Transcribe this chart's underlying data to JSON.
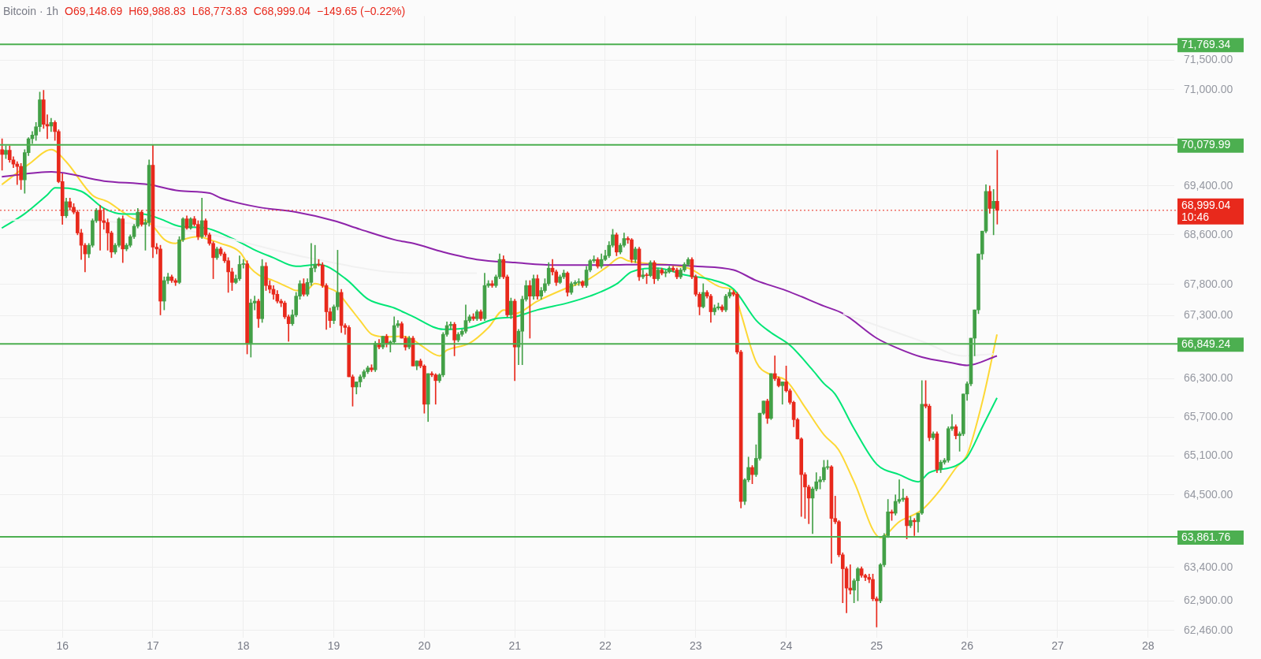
{
  "chart_data": {
    "type": "candlestick",
    "title": "Bitcoin · 1h",
    "annotations": [
      "O69,148.69",
      "H69,988.83",
      "L68,773.83",
      "C68,999.04",
      "−149.65 (−0.22%)"
    ],
    "colors": [
      "#e8291c",
      "#43a047",
      "#e8291c",
      "#e8291c",
      "#e8291c",
      "#e8291c",
      "#43a047",
      "#43a047",
      "#43a047",
      "#43a047",
      "#43a047",
      "#e8291c",
      "#e8291c",
      "#43a047",
      "#e8291c",
      "#e8291c",
      "#e8291c",
      "#43a047",
      "#e8291c",
      "#e8291c",
      "#e8291c",
      "#e8291c",
      "#e8291c",
      "#43a047",
      "#43a047",
      "#43a047",
      "#e8291c",
      "#e8291c",
      "#e8291c",
      "#e8291c",
      "#43a047",
      "#43a047",
      "#e8291c",
      "#43a047",
      "#43a047",
      "#43a047",
      "#43a047",
      "#e8291c",
      "#43a047",
      "#43a047",
      "#e8291c",
      "#e8291c",
      "#e8291c",
      "#43a047",
      "#43a047",
      "#e8291c",
      "#e8291c",
      "#43a047",
      "#43a047",
      "#e8291c",
      "#43a047",
      "#e8291c",
      "#e8291c",
      "#43a047",
      "#e8291c",
      "#e8291c",
      "#e8291c",
      "#43a047",
      "#e8291c",
      "#e8291c",
      "#e8291c",
      "#e8291c",
      "#43a047",
      "#43a047",
      "#43a047",
      "#e8291c",
      "#43a047",
      "#43a047",
      "#e8291c",
      "#43a047",
      "#e8291c",
      "#e8291c",
      "#e8291c",
      "#e8291c",
      "#e8291c",
      "#e8291c",
      "#e8291c",
      "#43a047",
      "#43a047",
      "#43a047",
      "#e8291c",
      "#43a047",
      "#43a047",
      "#43a047",
      "#e8291c",
      "#e8291c",
      "#e8291c",
      "#e8291c",
      "#43a047",
      "#43a047",
      "#e8291c",
      "#e8291c",
      "#e8291c",
      "#e8291c",
      "#43a047",
      "#43a047",
      "#43a047",
      "#43a047",
      "#e8291c",
      "#43a047",
      "#e8291c",
      "#43a047",
      "#e8291c",
      "#43a047",
      "#43a047",
      "#43a047",
      "#e8291c",
      "#e8291c",
      "#43a047",
      "#e8291c",
      "#43a047",
      "#e8291c",
      "#e8291c",
      "#43a047",
      "#e8291c",
      "#e8291c",
      "#43a047",
      "#43a047",
      "#43a047",
      "#43a047",
      "#e8291c",
      "#43a047",
      "#43a047",
      "#43a047",
      "#43a047",
      "#e8291c",
      "#43a047",
      "#e8291c",
      "#43a047",
      "#43a047",
      "#e8291c",
      "#43a047",
      "#43a047",
      "#e8291c",
      "#e8291c",
      "#43a047",
      "#e8291c",
      "#43a047",
      "#43a047",
      "#43a047",
      "#e8291c",
      "#43a047",
      "#e8291c",
      "#43a047",
      "#43a047",
      "#43a047",
      "#e8291c",
      "#e8291c",
      "#43a047",
      "#43a047",
      "#e8291c",
      "#43a047",
      "#43a047",
      "#43a047",
      "#e8291c",
      "#43a047",
      "#43a047",
      "#43a047",
      "#e8291c",
      "#43a047",
      "#43a047",
      "#43a047",
      "#43a047",
      "#e8291c",
      "#43a047",
      "#43a047",
      "#e8291c",
      "#e8291c",
      "#43a047",
      "#e8291c",
      "#43a047",
      "#e8291c",
      "#43a047",
      "#e8291c",
      "#43a047",
      "#e8291c",
      "#43a047",
      "#43a047",
      "#e8291c",
      "#e8291c",
      "#43a047",
      "#43a047",
      "#43a047",
      "#e8291c",
      "#e8291c",
      "#e8291c",
      "#43a047",
      "#e8291c",
      "#e8291c",
      "#43a047",
      "#43a047",
      "#e8291c",
      "#43a047",
      "#43a047",
      "#e8291c",
      "#e8291c",
      "#e8291c",
      "#43a047",
      "#43a047",
      "#e8291c",
      "#43a047",
      "#43a047",
      "#43a047",
      "#e8291c",
      "#43a047",
      "#e8291c",
      "#e8291c",
      "#43a047",
      "#e8291c",
      "#e8291c",
      "#e8291c",
      "#e8291c",
      "#e8291c",
      "#e8291c",
      "#e8291c",
      "#43a047",
      "#43a047",
      "#43a047",
      "#43a047",
      "#43a047",
      "#e8291c",
      "#e8291c",
      "#e8291c",
      "#e8291c",
      "#e8291c",
      "#e8291c",
      "#43a047",
      "#43a047",
      "#e8291c",
      "#e8291c",
      "#e8291c",
      "#e8291c",
      "#e8291c",
      "#43a047",
      "#43a047",
      "#43a047",
      "#e8291c",
      "#43a047",
      "#43a047",
      "#43a047",
      "#e8291c",
      "#43a047",
      "#e8291c",
      "#43a047",
      "#43a047",
      "#e8291c",
      "#e8291c",
      "#43a047",
      "#e8291c",
      "#43a047",
      "#43a047",
      "#43a047",
      "#43a047",
      "#e8291c",
      "#43a047",
      "#43a047",
      "#43a047",
      "#43a047",
      "#43a047",
      "#43a047",
      "#43a047",
      "#43a047",
      "#e8291c",
      "#43a047",
      "#e8291c"
    ],
    "x": [
      15.333,
      15.375,
      15.417,
      15.458,
      15.5,
      15.542,
      15.583,
      15.625,
      15.667,
      15.708,
      15.75,
      15.792,
      15.833,
      15.875,
      15.917,
      15.958,
      16,
      16.042,
      16.083,
      16.125,
      16.167,
      16.208,
      16.25,
      16.292,
      16.333,
      16.375,
      16.417,
      16.458,
      16.5,
      16.542,
      16.583,
      16.625,
      16.667,
      16.708,
      16.75,
      16.792,
      16.833,
      16.875,
      16.917,
      16.958,
      17,
      17.042,
      17.083,
      17.125,
      17.167,
      17.208,
      17.25,
      17.292,
      17.333,
      17.375,
      17.417,
      17.458,
      17.5,
      17.542,
      17.583,
      17.625,
      17.667,
      17.708,
      17.75,
      17.792,
      17.833,
      17.875,
      17.917,
      17.958,
      18,
      18.042,
      18.083,
      18.125,
      18.167,
      18.208,
      18.25,
      18.292,
      18.333,
      18.375,
      18.417,
      18.458,
      18.5,
      18.542,
      18.583,
      18.625,
      18.667,
      18.708,
      18.75,
      18.792,
      18.833,
      18.875,
      18.917,
      18.958,
      19,
      19.042,
      19.083,
      19.125,
      19.167,
      19.208,
      19.25,
      19.292,
      19.333,
      19.375,
      19.417,
      19.458,
      19.5,
      19.542,
      19.583,
      19.625,
      19.667,
      19.708,
      19.75,
      19.792,
      19.833,
      19.875,
      19.917,
      19.958,
      20,
      20.042,
      20.083,
      20.125,
      20.167,
      20.208,
      20.25,
      20.292,
      20.333,
      20.375,
      20.417,
      20.458,
      20.5,
      20.542,
      20.583,
      20.625,
      20.667,
      20.708,
      20.75,
      20.792,
      20.833,
      20.875,
      20.917,
      20.958,
      21,
      21.042,
      21.083,
      21.125,
      21.167,
      21.208,
      21.25,
      21.292,
      21.333,
      21.375,
      21.417,
      21.458,
      21.5,
      21.542,
      21.583,
      21.625,
      21.667,
      21.708,
      21.75,
      21.792,
      21.833,
      21.875,
      21.917,
      21.958,
      22,
      22.042,
      22.083,
      22.125,
      22.167,
      22.208,
      22.25,
      22.292,
      22.333,
      22.375,
      22.417,
      22.458,
      22.5,
      22.542,
      22.583,
      22.625,
      22.667,
      22.708,
      22.75,
      22.792,
      22.833,
      22.875,
      22.917,
      22.958,
      23,
      23.042,
      23.083,
      23.125,
      23.167,
      23.208,
      23.25,
      23.292,
      23.333,
      23.375,
      23.417,
      23.458,
      23.5,
      23.542,
      23.583,
      23.625,
      23.667,
      23.708,
      23.75,
      23.792,
      23.833,
      23.875,
      23.917,
      23.958,
      24,
      24.042,
      24.083,
      24.125,
      24.167,
      24.208,
      24.25,
      24.292,
      24.333,
      24.375,
      24.417,
      24.458,
      24.5,
      24.542,
      24.583,
      24.625,
      24.667,
      24.708,
      24.75,
      24.792,
      24.833,
      24.875,
      24.917,
      24.958,
      25,
      25.042,
      25.083,
      25.125,
      25.167,
      25.208,
      25.25,
      25.292,
      25.333,
      25.375,
      25.417,
      25.458,
      25.5,
      25.542,
      25.583,
      25.625,
      25.667,
      25.708,
      25.75,
      25.792,
      25.833,
      25.875,
      25.917,
      25.958,
      26,
      26.042,
      26.083,
      26.125,
      26.167,
      26.208,
      26.25,
      26.292,
      26.333
    ],
    "ohlc": [
      [
        70000,
        70180,
        69660,
        69920
      ],
      [
        69920,
        70060,
        69850,
        69990
      ],
      [
        69990,
        70060,
        69790,
        69830
      ],
      [
        69830,
        69880,
        69700,
        69760
      ],
      [
        69760,
        69800,
        69420,
        69720
      ],
      [
        69720,
        69770,
        69340,
        69500
      ],
      [
        69500,
        70000,
        69280,
        69950
      ],
      [
        69950,
        70200,
        69900,
        70180
      ],
      [
        70180,
        70300,
        70100,
        70240
      ],
      [
        70240,
        70450,
        70150,
        70380
      ],
      [
        70380,
        70960,
        70300,
        70830
      ],
      [
        70830,
        70990,
        70350,
        70420
      ],
      [
        70420,
        70580,
        70180,
        70390
      ],
      [
        70390,
        70520,
        70300,
        70450
      ],
      [
        70450,
        70480,
        70150,
        70300
      ],
      [
        70300,
        70330,
        69450,
        69470
      ],
      [
        69470,
        69600,
        68770,
        68910
      ],
      [
        68910,
        69200,
        68880,
        69140
      ],
      [
        69140,
        69200,
        69000,
        69050
      ],
      [
        69050,
        69110,
        68940,
        68970
      ],
      [
        68970,
        69000,
        68600,
        68630
      ],
      [
        68630,
        68690,
        68200,
        68430
      ],
      [
        68430,
        68460,
        68000,
        68290
      ],
      [
        68290,
        68460,
        68230,
        68430
      ],
      [
        68430,
        68860,
        68400,
        68830
      ],
      [
        68830,
        69030,
        68800,
        69000
      ],
      [
        69000,
        69080,
        68350,
        68830
      ],
      [
        68830,
        69030,
        68690,
        68800
      ],
      [
        68800,
        68860,
        68350,
        68630
      ],
      [
        68630,
        68660,
        68230,
        68320
      ],
      [
        68320,
        68460,
        68290,
        68430
      ],
      [
        68430,
        68880,
        68400,
        68860
      ],
      [
        68860,
        68910,
        68150,
        68370
      ],
      [
        68370,
        68460,
        68340,
        68430
      ],
      [
        68430,
        68600,
        68400,
        68570
      ],
      [
        68570,
        68770,
        68540,
        68740
      ],
      [
        68740,
        69030,
        68710,
        68970
      ],
      [
        68970,
        69000,
        68740,
        68770
      ],
      [
        68770,
        68860,
        68350,
        68800
      ],
      [
        68800,
        69830,
        68740,
        69740
      ],
      [
        69740,
        70080,
        68230,
        68400
      ],
      [
        68400,
        68460,
        68290,
        68370
      ],
      [
        68370,
        68430,
        67310,
        67530
      ],
      [
        67530,
        67920,
        67390,
        67860
      ],
      [
        67860,
        67980,
        67810,
        67920
      ],
      [
        67920,
        67950,
        67830,
        67860
      ],
      [
        67860,
        67890,
        67780,
        67830
      ],
      [
        67830,
        68570,
        67810,
        68520
      ],
      [
        68520,
        68880,
        68490,
        68860
      ],
      [
        68860,
        68910,
        68690,
        68710
      ],
      [
        68710,
        68880,
        68690,
        68860
      ],
      [
        68860,
        68900,
        68740,
        68770
      ],
      [
        68770,
        68830,
        68520,
        68570
      ],
      [
        68570,
        69200,
        68540,
        68830
      ],
      [
        68830,
        68860,
        68570,
        68600
      ],
      [
        68600,
        68630,
        68430,
        68460
      ],
      [
        68460,
        68490,
        67890,
        68230
      ],
      [
        68230,
        68400,
        68200,
        68370
      ],
      [
        68370,
        68400,
        68260,
        68290
      ],
      [
        68290,
        68320,
        68150,
        68180
      ],
      [
        68180,
        68230,
        67670,
        68000
      ],
      [
        68000,
        68060,
        67700,
        67830
      ],
      [
        67830,
        67950,
        67810,
        67890
      ],
      [
        67890,
        68260,
        67860,
        68120
      ],
      [
        68120,
        68200,
        68060,
        68130
      ],
      [
        68130,
        68180,
        66690,
        66860
      ],
      [
        66860,
        67560,
        66640,
        67500
      ],
      [
        67500,
        67610,
        67390,
        67530
      ],
      [
        67530,
        67560,
        67110,
        67250
      ],
      [
        67250,
        68200,
        67190,
        68090
      ],
      [
        68090,
        68150,
        67700,
        67780
      ],
      [
        67780,
        67860,
        67660,
        67720
      ],
      [
        67720,
        67780,
        67560,
        67640
      ],
      [
        67640,
        67700,
        67500,
        67530
      ],
      [
        67530,
        67560,
        67440,
        67500
      ],
      [
        67500,
        67530,
        67250,
        67280
      ],
      [
        67280,
        67310,
        66890,
        67170
      ],
      [
        67170,
        67390,
        67140,
        67310
      ],
      [
        67310,
        67670,
        67280,
        67610
      ],
      [
        67610,
        67860,
        67560,
        67810
      ],
      [
        67810,
        67890,
        67610,
        67640
      ],
      [
        67640,
        67890,
        67610,
        67830
      ],
      [
        67830,
        68460,
        67780,
        68060
      ],
      [
        68060,
        68430,
        68000,
        68120
      ],
      [
        68120,
        68200,
        68090,
        68110
      ],
      [
        68110,
        68150,
        67750,
        67780
      ],
      [
        67780,
        67810,
        67080,
        67360
      ],
      [
        67360,
        67420,
        67110,
        67220
      ],
      [
        67220,
        67470,
        67170,
        67440
      ],
      [
        67440,
        68350,
        67390,
        67670
      ],
      [
        67670,
        67720,
        67030,
        67140
      ],
      [
        67140,
        67170,
        67000,
        67110
      ],
      [
        67110,
        67140,
        66330,
        66330
      ],
      [
        66330,
        66360,
        65870,
        66170
      ],
      [
        66170,
        66250,
        66060,
        66250
      ],
      [
        66250,
        66360,
        66170,
        66330
      ],
      [
        66330,
        66440,
        66300,
        66410
      ],
      [
        66410,
        66500,
        66380,
        66470
      ],
      [
        66470,
        66520,
        66410,
        66440
      ],
      [
        66440,
        66890,
        66410,
        66860
      ],
      [
        66860,
        66920,
        66770,
        66800
      ],
      [
        66800,
        66970,
        66770,
        66970
      ],
      [
        66970,
        67000,
        66800,
        66860
      ],
      [
        66860,
        66900,
        66720,
        66880
      ],
      [
        66880,
        67280,
        66860,
        67140
      ],
      [
        67140,
        67220,
        67110,
        67170
      ],
      [
        67170,
        67200,
        66940,
        66940
      ],
      [
        66940,
        66970,
        66750,
        66800
      ],
      [
        66800,
        66970,
        66770,
        66940
      ],
      [
        66940,
        66970,
        66500,
        66500
      ],
      [
        66500,
        66580,
        66440,
        66580
      ],
      [
        66580,
        66610,
        66470,
        66500
      ],
      [
        66500,
        66520,
        65760,
        65900
      ],
      [
        65900,
        66380,
        65630,
        66380
      ],
      [
        66380,
        66410,
        66330,
        66360
      ],
      [
        66360,
        66380,
        65900,
        66270
      ],
      [
        66270,
        66380,
        66240,
        66360
      ],
      [
        66360,
        67030,
        66330,
        67000
      ],
      [
        67000,
        67200,
        66970,
        67140
      ],
      [
        67140,
        67200,
        67080,
        67160
      ],
      [
        67160,
        67190,
        66660,
        66910
      ],
      [
        66910,
        67030,
        66880,
        67000
      ],
      [
        67000,
        67080,
        66970,
        67050
      ],
      [
        67050,
        67470,
        67020,
        67220
      ],
      [
        67220,
        67310,
        67190,
        67280
      ],
      [
        67280,
        67330,
        67220,
        67250
      ],
      [
        67250,
        67390,
        67220,
        67360
      ],
      [
        67360,
        67390,
        67220,
        67250
      ],
      [
        67250,
        67980,
        67220,
        67780
      ],
      [
        67780,
        67860,
        67750,
        67810
      ],
      [
        67810,
        67860,
        67750,
        67780
      ],
      [
        67780,
        67950,
        67750,
        67920
      ],
      [
        67920,
        68290,
        67890,
        68200
      ],
      [
        68200,
        68260,
        67890,
        67920
      ],
      [
        67920,
        67950,
        67280,
        67310
      ],
      [
        67310,
        67580,
        67250,
        67530
      ],
      [
        67530,
        67560,
        66270,
        66800
      ],
      [
        66800,
        67080,
        66520,
        67050
      ],
      [
        67050,
        67610,
        66520,
        67560
      ],
      [
        67560,
        67860,
        67530,
        67780
      ],
      [
        67780,
        67860,
        66940,
        67610
      ],
      [
        67610,
        67950,
        67560,
        67890
      ],
      [
        67890,
        67950,
        67560,
        67610
      ],
      [
        67610,
        67750,
        67560,
        67700
      ],
      [
        67700,
        67890,
        67670,
        67810
      ],
      [
        67810,
        68150,
        67780,
        68060
      ],
      [
        68060,
        68200,
        67950,
        68000
      ],
      [
        68000,
        68030,
        67780,
        67830
      ],
      [
        67830,
        67950,
        67810,
        67920
      ],
      [
        67920,
        68030,
        67890,
        67980
      ],
      [
        67980,
        68000,
        67610,
        67670
      ],
      [
        67670,
        67840,
        67640,
        67810
      ],
      [
        67810,
        67860,
        67780,
        67830
      ],
      [
        67830,
        67890,
        67780,
        67840
      ],
      [
        67840,
        67860,
        67750,
        67780
      ],
      [
        67780,
        68090,
        67750,
        68030
      ],
      [
        68030,
        68200,
        68000,
        68180
      ],
      [
        68180,
        68260,
        68150,
        68200
      ],
      [
        68200,
        68230,
        68060,
        68090
      ],
      [
        68090,
        68290,
        68060,
        68200
      ],
      [
        68200,
        68350,
        68180,
        68260
      ],
      [
        68260,
        68490,
        68230,
        68430
      ],
      [
        68430,
        68690,
        68400,
        68600
      ],
      [
        68600,
        68630,
        68260,
        68320
      ],
      [
        68320,
        68460,
        68290,
        68430
      ],
      [
        68430,
        68630,
        68400,
        68540
      ],
      [
        68540,
        68570,
        68460,
        68520
      ],
      [
        68520,
        68540,
        68150,
        68200
      ],
      [
        68200,
        68400,
        68150,
        68370
      ],
      [
        68370,
        68400,
        67860,
        67920
      ],
      [
        67920,
        68030,
        67890,
        67950
      ],
      [
        67950,
        67980,
        67810,
        67940
      ],
      [
        67940,
        68180,
        67920,
        68150
      ],
      [
        68150,
        68180,
        67810,
        67890
      ],
      [
        67890,
        68060,
        67860,
        68030
      ],
      [
        68030,
        68060,
        67950,
        67980
      ],
      [
        67980,
        68030,
        67920,
        68000
      ],
      [
        68000,
        68090,
        67980,
        68060
      ],
      [
        68060,
        68090,
        68000,
        68030
      ],
      [
        68030,
        68060,
        67890,
        67920
      ],
      [
        67920,
        68060,
        67890,
        68030
      ],
      [
        68030,
        68150,
        68000,
        68120
      ],
      [
        68120,
        68230,
        68090,
        68200
      ],
      [
        68200,
        68230,
        67890,
        67920
      ],
      [
        67920,
        67950,
        67610,
        67640
      ],
      [
        67640,
        67670,
        67310,
        67440
      ],
      [
        67440,
        67810,
        67420,
        67670
      ],
      [
        67670,
        67700,
        67580,
        67610
      ],
      [
        67610,
        67640,
        67190,
        67360
      ],
      [
        67360,
        67470,
        67310,
        67420
      ],
      [
        67420,
        67500,
        67390,
        67440
      ],
      [
        67440,
        67470,
        67360,
        67390
      ],
      [
        67390,
        67640,
        67360,
        67610
      ],
      [
        67610,
        67720,
        67580,
        67670
      ],
      [
        67670,
        67700,
        67610,
        67640
      ],
      [
        67640,
        67670,
        66690,
        66720
      ],
      [
        66720,
        66750,
        64300,
        64400
      ],
      [
        64400,
        64750,
        64350,
        64730
      ],
      [
        64730,
        65080,
        64700,
        64920
      ],
      [
        64920,
        64950,
        64670,
        64810
      ],
      [
        64810,
        65270,
        64780,
        65060
      ],
      [
        65060,
        65760,
        65030,
        65760
      ],
      [
        65760,
        65950,
        65740,
        65950
      ],
      [
        65950,
        65980,
        65600,
        65680
      ],
      [
        65680,
        66380,
        65660,
        66380
      ],
      [
        66380,
        66660,
        66270,
        66300
      ],
      [
        66300,
        66330,
        66170,
        66190
      ],
      [
        66190,
        66250,
        65900,
        66250
      ],
      [
        66250,
        66500,
        66090,
        66110
      ],
      [
        66110,
        66140,
        65900,
        65930
      ],
      [
        65930,
        65950,
        65550,
        65660
      ],
      [
        65660,
        65680,
        65360,
        65360
      ],
      [
        65360,
        65380,
        64170,
        64810
      ],
      [
        64810,
        64840,
        64140,
        64620
      ],
      [
        64620,
        64650,
        64060,
        64450
      ],
      [
        64450,
        64620,
        63910,
        64590
      ],
      [
        64590,
        64840,
        64560,
        64700
      ],
      [
        64700,
        64780,
        64590,
        64730
      ],
      [
        64730,
        65030,
        64700,
        64920
      ],
      [
        64920,
        65030,
        64890,
        64930
      ],
      [
        64930,
        64950,
        63460,
        64140
      ],
      [
        64140,
        64480,
        64060,
        64090
      ],
      [
        64090,
        64110,
        63560,
        63590
      ],
      [
        63590,
        63620,
        62870,
        63380
      ],
      [
        63380,
        63410,
        62720,
        63090
      ],
      [
        63090,
        63440,
        63000,
        63060
      ],
      [
        63060,
        63230,
        62870,
        63200
      ],
      [
        63200,
        63400,
        62900,
        63380
      ],
      [
        63380,
        63410,
        63250,
        63280
      ],
      [
        63280,
        63300,
        63200,
        63250
      ],
      [
        63250,
        63300,
        63170,
        63220
      ],
      [
        63220,
        63300,
        62900,
        62930
      ],
      [
        62930,
        62960,
        62510,
        62900
      ],
      [
        62900,
        63460,
        62870,
        63440
      ],
      [
        63440,
        63910,
        63410,
        63880
      ],
      [
        63880,
        64430,
        63850,
        64240
      ],
      [
        64240,
        64270,
        64110,
        64220
      ],
      [
        64220,
        64500,
        64190,
        64400
      ],
      [
        64400,
        64730,
        64370,
        64430
      ],
      [
        64430,
        64590,
        64400,
        64450
      ],
      [
        64450,
        64480,
        63830,
        64030
      ],
      [
        64030,
        64170,
        64000,
        64110
      ],
      [
        64110,
        64140,
        63880,
        64090
      ],
      [
        64090,
        64220,
        63930,
        64220
      ],
      [
        64220,
        66270,
        64200,
        65900
      ],
      [
        65900,
        66270,
        65840,
        65870
      ],
      [
        65870,
        65900,
        65330,
        65380
      ],
      [
        65380,
        65470,
        65350,
        65440
      ],
      [
        65440,
        65470,
        64840,
        64890
      ],
      [
        64890,
        65030,
        64840,
        65000
      ],
      [
        65000,
        65060,
        64970,
        65030
      ],
      [
        65030,
        65550,
        65000,
        65520
      ],
      [
        65520,
        65740,
        65490,
        65550
      ],
      [
        65550,
        65580,
        65360,
        65410
      ],
      [
        65410,
        65470,
        65170,
        65440
      ],
      [
        65440,
        66060,
        65410,
        66060
      ],
      [
        66060,
        66250,
        65960,
        66220
      ],
      [
        66220,
        66940,
        66190,
        66940
      ],
      [
        66940,
        67390,
        66660,
        67390
      ],
      [
        67390,
        68290,
        67330,
        68290
      ],
      [
        68290,
        68660,
        68200,
        68660
      ],
      [
        68660,
        69420,
        68630,
        69310
      ],
      [
        69310,
        69400,
        68950,
        69030
      ],
      [
        69030,
        69340,
        68600,
        69148.69
      ],
      [
        69148.69,
        69988.83,
        68773.83,
        68999.04
      ]
    ],
    "series": [
      {
        "type": "line",
        "color": "#f1f1f1",
        "x": [
          15.33,
          16.08,
          17.54,
          18.71,
          19.88,
          20.58,
          22.5,
          24.63,
          25.5,
          25.96,
          26.29
        ],
        "values": [
          68840,
          68840,
          68630,
          68230,
          67980,
          67980,
          null,
          67330,
          66890,
          66660,
          66690
        ]
      },
      {
        "type": "line",
        "color": "#8e24aa",
        "x": [
          15.33,
          15.88,
          16.46,
          16.96,
          17.29,
          17.63,
          17.75,
          18.17,
          18.58,
          19,
          19.29,
          19.67,
          19.88,
          20.21,
          20.58,
          21,
          21.46,
          22,
          22.46,
          23,
          23.42,
          23.67,
          24,
          24.42,
          24.63,
          25,
          25.25,
          25.5,
          25.83,
          26,
          26.33
        ],
        "values": [
          69550,
          69630,
          69480,
          69420,
          69320,
          69280,
          69200,
          69050,
          68970,
          68830,
          68690,
          68520,
          68460,
          68320,
          68200,
          68150,
          68110,
          68110,
          68120,
          68090,
          68030,
          67860,
          67700,
          67450,
          67330,
          66940,
          66770,
          66640,
          66550,
          66510,
          66660
        ]
      },
      {
        "type": "line",
        "color": "#00e676",
        "x": [
          15.33,
          15.58,
          15.83,
          15.92,
          16.21,
          16.46,
          16.67,
          16.88,
          17.08,
          17.29,
          17.58,
          17.88,
          18.13,
          18.33,
          18.58,
          18.83,
          19.13,
          19.38,
          19.67,
          19.88,
          20.21,
          20.5,
          20.79,
          21,
          21.25,
          21.58,
          21.83,
          22.13,
          22.29,
          22.58,
          22.88,
          23.21,
          23.42,
          23.67,
          23.83,
          24.04,
          24.29,
          24.42,
          24.54,
          24.75,
          25,
          25.25,
          25.46,
          25.58,
          25.88,
          26,
          26.17,
          26.33
        ],
        "values": [
          68710,
          68940,
          69250,
          69370,
          69310,
          69030,
          68940,
          68940,
          68860,
          68740,
          68710,
          68540,
          68350,
          68230,
          68090,
          68120,
          67890,
          67560,
          67420,
          67280,
          67080,
          67110,
          67250,
          67280,
          67390,
          67500,
          67610,
          67810,
          68000,
          68060,
          67950,
          67860,
          67720,
          67220,
          67030,
          66830,
          66440,
          66220,
          66060,
          65520,
          64970,
          64810,
          64700,
          64840,
          64950,
          65080,
          65550,
          66000
        ]
      },
      {
        "type": "line",
        "color": "#fdd835",
        "x": [
          15.33,
          15.63,
          15.88,
          16.04,
          16.33,
          16.5,
          16.67,
          16.79,
          16.92,
          17,
          17.13,
          17.25,
          17.33,
          17.5,
          17.63,
          17.75,
          17.96,
          18.08,
          18.17,
          18.33,
          18.5,
          18.58,
          18.71,
          18.79,
          18.92,
          19.04,
          19.17,
          19.29,
          19.42,
          19.58,
          19.75,
          19.88,
          19.96,
          20.17,
          20.25,
          20.5,
          20.71,
          20.88,
          21,
          21.25,
          21.54,
          21.79,
          22,
          22.17,
          22.25,
          22.92,
          23,
          23.29,
          23.42,
          23.5,
          23.67,
          23.83,
          24,
          24.21,
          24.42,
          24.58,
          24.75,
          25.04,
          25.25,
          25.5,
          25.71,
          25.88,
          26,
          26.17,
          26.33
        ],
        "values": [
          69420,
          69760,
          70000,
          69800,
          69250,
          69140,
          68970,
          68860,
          68830,
          68740,
          68520,
          68460,
          68520,
          68570,
          68520,
          68460,
          68320,
          68060,
          67950,
          67860,
          67750,
          67700,
          67720,
          67810,
          67750,
          67670,
          67440,
          67220,
          67000,
          66960,
          66970,
          66910,
          66830,
          66660,
          66750,
          66860,
          67110,
          67390,
          67330,
          67530,
          67720,
          67860,
          68060,
          68230,
          68180,
          68060,
          68000,
          67750,
          67700,
          67330,
          66560,
          66360,
          66270,
          65850,
          65420,
          65190,
          64700,
          63850,
          64090,
          64270,
          64590,
          64920,
          65120,
          65950,
          67000
        ]
      }
    ],
    "xlim": [
      15.31,
      28.29
    ],
    "xticks": [
      16,
      17,
      18,
      19,
      20,
      21,
      22,
      23,
      24,
      25,
      26,
      27,
      28
    ],
    "ylim": [
      62350,
      72250
    ],
    "log": true,
    "yticks": [
      {
        "value": 71500,
        "label": "71,500.00"
      },
      {
        "value": 71000,
        "label": "71,000.00"
      },
      {
        "value": 70200,
        "label": null
      },
      {
        "value": 69400,
        "label": "69,400.00"
      },
      {
        "value": 68600,
        "label": "68,600.00"
      },
      {
        "value": 67800,
        "label": "67,800.00"
      },
      {
        "value": 67300,
        "label": "67,300.00"
      },
      {
        "value": 66300,
        "label": "66,300.00"
      },
      {
        "value": 65700,
        "label": "65,700.00"
      },
      {
        "value": 65100,
        "label": "65,100.00"
      },
      {
        "value": 64500,
        "label": "64,500.00"
      },
      {
        "value": 63400,
        "label": "63,400.00"
      },
      {
        "value": 62900,
        "label": "62,900.00"
      },
      {
        "value": 62460,
        "label": "62,460.00"
      }
    ],
    "grid": true,
    "legend": false,
    "ref_lines": [
      {
        "axis": "y",
        "value": 71769.34,
        "label": "71,769.34",
        "color": "#4caf50"
      },
      {
        "axis": "y",
        "value": 70079.99,
        "label": "70,079.99",
        "color": "#4caf50"
      },
      {
        "axis": "y",
        "value": 68999.04,
        "label": "68,999.04\n10:46",
        "color": "#e8291c",
        "line_style": "dotted"
      },
      {
        "axis": "y",
        "value": 66849.24,
        "label": "66,849.24",
        "color": "#4caf50"
      },
      {
        "axis": "y",
        "value": 63861.76,
        "label": "63,861.76",
        "color": "#4caf50"
      }
    ]
  }
}
